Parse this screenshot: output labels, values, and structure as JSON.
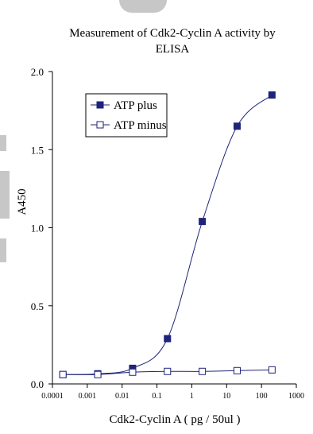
{
  "chart_data": {
    "type": "line",
    "title": "Measurement of Cdk2-Cyclin A activity by ELISA",
    "title_lines": [
      "Measurement of Cdk2-Cyclin A activity by",
      "ELISA"
    ],
    "xlabel": "Cdk2-Cyclin A ( pg / 50ul )",
    "ylabel": "A450",
    "xscale": "log",
    "xlim": [
      0.0001,
      1000
    ],
    "ylim": [
      0.0,
      2.0
    ],
    "x_ticks": [
      "0.0001",
      "0.001",
      "0.01",
      "0.1",
      "1",
      "10",
      "100",
      "1000"
    ],
    "y_ticks": [
      "0.0",
      "0.5",
      "1.0",
      "1.5",
      "2.0"
    ],
    "legend_position": "top-left",
    "grid": false,
    "series": [
      {
        "name": "ATP plus",
        "marker": "filled-square",
        "color": "#1f237a",
        "x": [
          0.0002,
          0.002,
          0.02,
          0.2,
          2,
          20,
          200
        ],
        "y": [
          0.06,
          0.065,
          0.1,
          0.29,
          1.04,
          1.65,
          1.85
        ]
      },
      {
        "name": "ATP minus",
        "marker": "open-square",
        "color": "#1f237a",
        "x": [
          0.0002,
          0.002,
          0.02,
          0.2,
          2,
          20,
          200
        ],
        "y": [
          0.06,
          0.06,
          0.075,
          0.08,
          0.08,
          0.085,
          0.09
        ]
      }
    ]
  }
}
